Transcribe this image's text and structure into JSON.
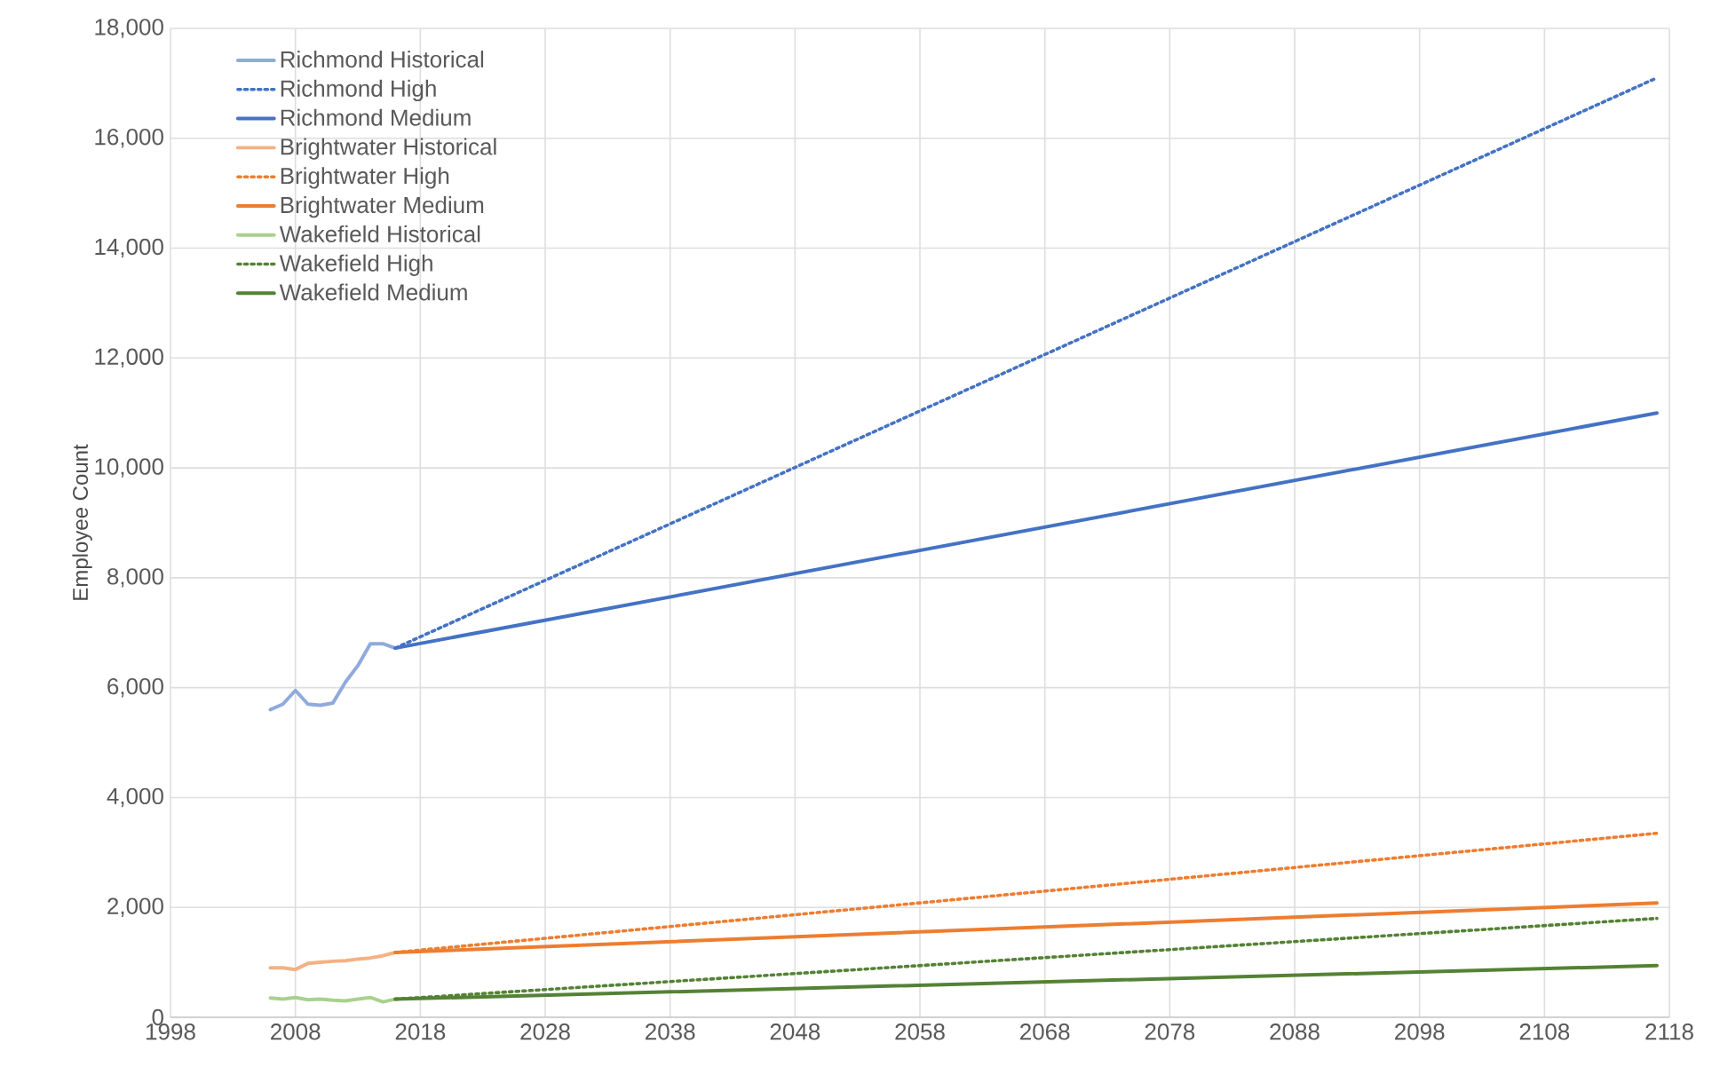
{
  "chart_data": {
    "type": "line",
    "ylabel": "Employee Count",
    "grid": true,
    "legend": "top left",
    "xlim": [
      1998,
      2118
    ],
    "xticks": [
      1998,
      2008,
      2018,
      2028,
      2038,
      2048,
      2058,
      2068,
      2078,
      2088,
      2098,
      2108,
      2118
    ],
    "ylim": [
      0,
      18000
    ],
    "yticks": [
      {
        "value": 0,
        "label": "0"
      },
      {
        "value": 2000,
        "label": "2,000"
      },
      {
        "value": 4000,
        "label": "4,000"
      },
      {
        "value": 6000,
        "label": "6,000"
      },
      {
        "value": 8000,
        "label": "8,000"
      },
      {
        "value": 10000,
        "label": "10,000"
      },
      {
        "value": 12000,
        "label": "12,000"
      },
      {
        "value": 14000,
        "label": "14,000"
      },
      {
        "value": 16000,
        "label": "16,000"
      },
      {
        "value": 18000,
        "label": "18,000"
      }
    ],
    "series": [
      {
        "name": "Richmond Historical",
        "color": "#8faadc",
        "line_style": "solid",
        "x": [
          2006,
          2007,
          2008,
          2009,
          2010,
          2011,
          2012,
          2013,
          2014,
          2015,
          2016
        ],
        "values": [
          5600,
          5700,
          5950,
          5700,
          5680,
          5720,
          6100,
          6400,
          6800,
          6800,
          6720
        ]
      },
      {
        "name": "Richmond High",
        "color": "#4472c4",
        "line_style": "dotted",
        "x": [
          2016,
          2117
        ],
        "values": [
          6720,
          17100
        ]
      },
      {
        "name": "Richmond Medium",
        "color": "#4472c4",
        "line_style": "solid",
        "x": [
          2016,
          2117
        ],
        "values": [
          6720,
          11000
        ]
      },
      {
        "name": "Brightwater Historical",
        "color": "#f4b183",
        "line_style": "solid",
        "x": [
          2006,
          2007,
          2008,
          2009,
          2010,
          2011,
          2012,
          2013,
          2014,
          2015,
          2016
        ],
        "values": [
          900,
          900,
          870,
          980,
          1000,
          1020,
          1030,
          1060,
          1080,
          1120,
          1180
        ]
      },
      {
        "name": "Brightwater High",
        "color": "#ed7d31",
        "line_style": "dotted",
        "x": [
          2016,
          2117
        ],
        "values": [
          1180,
          3350
        ]
      },
      {
        "name": "Brightwater Medium",
        "color": "#ed7d31",
        "line_style": "solid",
        "x": [
          2016,
          2117
        ],
        "values": [
          1180,
          2080
        ]
      },
      {
        "name": "Wakefield Historical",
        "color": "#a9d18e",
        "line_style": "solid",
        "x": [
          2006,
          2007,
          2008,
          2009,
          2010,
          2011,
          2012,
          2013,
          2014,
          2015,
          2016
        ],
        "values": [
          350,
          330,
          360,
          320,
          330,
          310,
          300,
          330,
          360,
          280,
          330
        ]
      },
      {
        "name": "Wakefield High",
        "color": "#548235",
        "line_style": "dotted",
        "x": [
          2016,
          2117
        ],
        "values": [
          330,
          1800
        ]
      },
      {
        "name": "Wakefield Medium",
        "color": "#548235",
        "line_style": "solid",
        "x": [
          2016,
          2117
        ],
        "values": [
          330,
          940
        ]
      }
    ]
  }
}
